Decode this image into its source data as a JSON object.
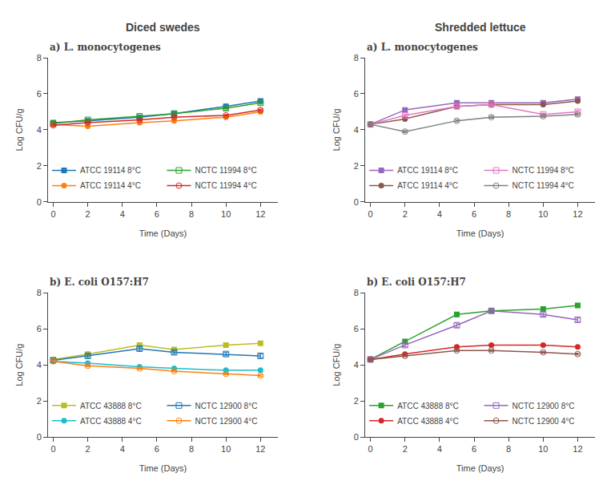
{
  "chart_data": [
    {
      "type": "line",
      "subtitle": "Diced swedes",
      "title": "a) L. monocytogenes",
      "xlabel": "Time (Days)",
      "ylabel": "Log CFU/g",
      "x": [
        0,
        2,
        5,
        7,
        10,
        12
      ],
      "xlim": [
        -0.3,
        13
      ],
      "xticks": [
        0,
        2,
        4,
        6,
        8,
        10,
        12
      ],
      "ylim": [
        0,
        8
      ],
      "yticks": [
        0,
        2,
        4,
        6,
        8
      ],
      "grid": false,
      "legend": "lower left",
      "series": [
        {
          "name": "ATCC 19114 8°C",
          "marker": "square",
          "values": [
            4.4,
            4.5,
            4.7,
            4.9,
            5.3,
            5.6
          ],
          "errors": [
            0.05,
            0.05,
            0.05,
            0.07,
            0.12,
            0.1
          ]
        },
        {
          "name": "ATCC 19114 4°C",
          "marker": "circle",
          "values": [
            4.3,
            4.2,
            4.4,
            4.5,
            4.7,
            5.0
          ],
          "errors": [
            0.05,
            0.05,
            0.05,
            0.05,
            0.05,
            0.05
          ]
        },
        {
          "name": "NCTC 11994 8°C",
          "marker": "square-open",
          "values": [
            4.35,
            4.55,
            4.75,
            4.9,
            5.2,
            5.5
          ],
          "errors": [
            0.05,
            0.05,
            0.05,
            0.07,
            0.1,
            0.08
          ]
        },
        {
          "name": "NCTC 11994 4°C",
          "marker": "circle-open",
          "values": [
            4.25,
            4.4,
            4.55,
            4.7,
            4.8,
            5.1
          ],
          "errors": [
            0.05,
            0.05,
            0.05,
            0.05,
            0.05,
            0.05
          ]
        }
      ]
    },
    {
      "type": "line",
      "subtitle": "Shredded lettuce",
      "title": "a) L. monocytogenes",
      "xlabel": "Time (Days)",
      "ylabel": "Log CFU/g",
      "x": [
        0,
        2,
        5,
        7,
        10,
        12
      ],
      "xlim": [
        -0.3,
        13
      ],
      "xticks": [
        0,
        2,
        4,
        6,
        8,
        10,
        12
      ],
      "ylim": [
        0,
        8
      ],
      "yticks": [
        0,
        2,
        4,
        6,
        8
      ],
      "grid": false,
      "legend": "lower left",
      "series": [
        {
          "name": "ATCC 19114 8°C",
          "marker": "square",
          "values": [
            4.3,
            5.1,
            5.5,
            5.5,
            5.5,
            5.7
          ],
          "errors": [
            0.05,
            0.08,
            0.1,
            0.08,
            0.08,
            0.1
          ]
        },
        {
          "name": "ATCC 19114 4°C",
          "marker": "circle",
          "values": [
            4.3,
            4.6,
            5.3,
            5.4,
            5.4,
            5.6
          ],
          "errors": [
            0.05,
            0.05,
            0.05,
            0.05,
            0.05,
            0.05
          ]
        },
        {
          "name": "NCTC 11994 8°C",
          "marker": "square-open",
          "values": [
            4.3,
            4.8,
            5.3,
            5.4,
            4.85,
            5.0
          ],
          "errors": [
            0.05,
            0.07,
            0.1,
            0.08,
            0.07,
            0.08
          ]
        },
        {
          "name": "NCTC 11994 4°C",
          "marker": "circle-open",
          "values": [
            4.3,
            3.9,
            4.5,
            4.7,
            4.75,
            4.85
          ],
          "errors": [
            0.05,
            0.06,
            0.06,
            0.06,
            0.06,
            0.06
          ]
        }
      ]
    },
    {
      "type": "line",
      "title": "b) E. coli O157:H7",
      "xlabel": "Time (Days)",
      "ylabel": "Log CFU/g",
      "x": [
        0,
        2,
        5,
        7,
        10,
        12
      ],
      "xlim": [
        -0.3,
        13
      ],
      "xticks": [
        0,
        2,
        4,
        6,
        8,
        10,
        12
      ],
      "ylim": [
        0,
        8
      ],
      "yticks": [
        0,
        2,
        4,
        6,
        8
      ],
      "grid": false,
      "legend": "lower left",
      "series": [
        {
          "name": "ATCC 43888 8°C",
          "marker": "square",
          "values": [
            4.3,
            4.6,
            5.1,
            4.85,
            5.1,
            5.2
          ],
          "errors": [
            0.08,
            0.1,
            0.12,
            0.1,
            0.1,
            0.1
          ]
        },
        {
          "name": "ATCC 43888 4°C",
          "marker": "circle",
          "values": [
            4.2,
            4.1,
            3.9,
            3.8,
            3.7,
            3.7
          ],
          "errors": [
            0.05,
            0.05,
            0.05,
            0.05,
            0.05,
            0.05
          ]
        },
        {
          "name": "NCTC 12900 8°C",
          "marker": "square-open",
          "values": [
            4.25,
            4.5,
            4.9,
            4.7,
            4.6,
            4.5
          ],
          "errors": [
            0.08,
            0.1,
            0.12,
            0.1,
            0.1,
            0.1
          ]
        },
        {
          "name": "NCTC 12900 4°C",
          "marker": "circle-open",
          "values": [
            4.2,
            3.95,
            3.8,
            3.65,
            3.5,
            3.4
          ],
          "errors": [
            0.05,
            0.05,
            0.05,
            0.05,
            0.05,
            0.05
          ]
        }
      ]
    },
    {
      "type": "line",
      "title": "b) E. coli O157:H7",
      "xlabel": "Time (Days)",
      "ylabel": "Log CFU/g",
      "x": [
        0,
        2,
        5,
        7,
        10,
        12
      ],
      "xlim": [
        -0.3,
        13
      ],
      "xticks": [
        0,
        2,
        4,
        6,
        8,
        10,
        12
      ],
      "ylim": [
        0,
        8
      ],
      "yticks": [
        0,
        2,
        4,
        6,
        8
      ],
      "grid": false,
      "legend": "lower left",
      "series": [
        {
          "name": "ATCC 43888 8°C",
          "marker": "square",
          "values": [
            4.3,
            5.3,
            6.8,
            7.0,
            7.1,
            7.3
          ],
          "errors": [
            0.08,
            0.1,
            0.12,
            0.1,
            0.1,
            0.1
          ]
        },
        {
          "name": "ATCC 43888 4°C",
          "marker": "circle",
          "values": [
            4.3,
            4.6,
            5.0,
            5.1,
            5.1,
            5.0
          ],
          "errors": [
            0.05,
            0.05,
            0.05,
            0.05,
            0.05,
            0.05
          ]
        },
        {
          "name": "NCTC 12900 8°C",
          "marker": "square-open",
          "values": [
            4.3,
            5.1,
            6.2,
            7.0,
            6.8,
            6.5
          ],
          "errors": [
            0.08,
            0.1,
            0.12,
            0.1,
            0.1,
            0.1
          ]
        },
        {
          "name": "NCTC 12900 4°C",
          "marker": "circle-open",
          "values": [
            4.3,
            4.5,
            4.8,
            4.8,
            4.7,
            4.6
          ],
          "errors": [
            0.05,
            0.05,
            0.05,
            0.05,
            0.05,
            0.05
          ]
        }
      ]
    }
  ]
}
